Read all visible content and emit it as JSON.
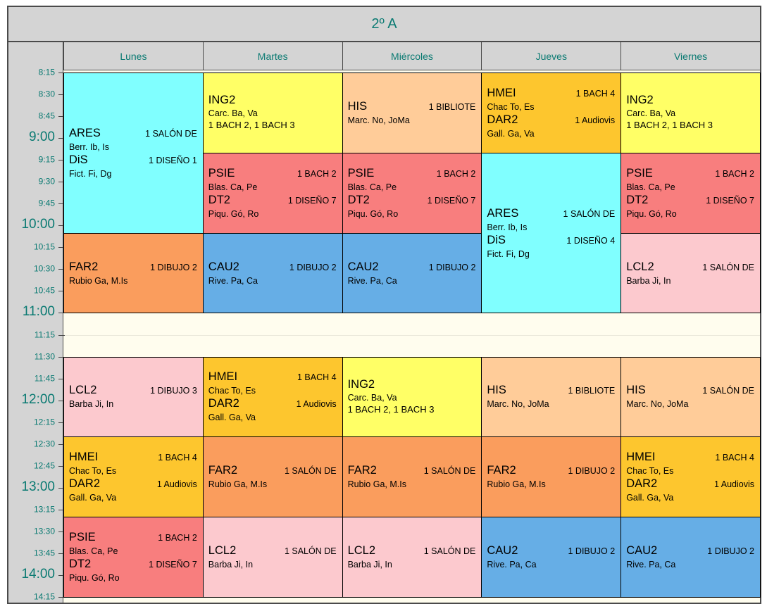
{
  "title": "2º A",
  "days": [
    "Lunes",
    "Martes",
    "Miércoles",
    "Jueves",
    "Viernes"
  ],
  "time_ticks": [
    {
      "label": "8:15",
      "major": false
    },
    {
      "label": "8:30",
      "major": false
    },
    {
      "label": "8:45",
      "major": false
    },
    {
      "label": "9:00",
      "major": true
    },
    {
      "label": "9:15",
      "major": false
    },
    {
      "label": "9:30",
      "major": false
    },
    {
      "label": "9:45",
      "major": false
    },
    {
      "label": "10:00",
      "major": true
    },
    {
      "label": "10:15",
      "major": false
    },
    {
      "label": "10:30",
      "major": false
    },
    {
      "label": "10:45",
      "major": false
    },
    {
      "label": "11:00",
      "major": true
    },
    {
      "label": "11:15",
      "major": false
    },
    {
      "label": "11:30",
      "major": false
    },
    {
      "label": "11:45",
      "major": false
    },
    {
      "label": "12:00",
      "major": true
    },
    {
      "label": "12:15",
      "major": false
    },
    {
      "label": "12:30",
      "major": false
    },
    {
      "label": "12:45",
      "major": false
    },
    {
      "label": "13:00",
      "major": true
    },
    {
      "label": "13:15",
      "major": false
    },
    {
      "label": "13:30",
      "major": false
    },
    {
      "label": "13:45",
      "major": false
    },
    {
      "label": "14:00",
      "major": true
    },
    {
      "label": "14:15",
      "major": false
    }
  ],
  "colors": {
    "cyan": "#80ffff",
    "yellow": "#ffff66",
    "peach": "#ffcc99",
    "gold": "#fdc62e",
    "red": "#f87e7e",
    "orange": "#fa9d5d",
    "blue": "#66aee6",
    "pink": "#fcc9ce",
    "chrome": "#d4d4d4",
    "teal_text": "#0a7a72",
    "grid_bg": "#fffdee"
  },
  "schedule": [
    {
      "day": 0,
      "start": "8:15",
      "end": "10:05",
      "color": "cyan",
      "entries": [
        {
          "code": "ARES",
          "room": "1 SALÓN DE",
          "teachers": "Berr. Ib, Is"
        },
        {
          "code": "DiS",
          "room": "1 DISEÑO 1",
          "teachers": "Fict. Fi, Dg"
        }
      ]
    },
    {
      "day": 0,
      "start": "10:05",
      "end": "11:00",
      "color": "orange",
      "entries": [
        {
          "code": "FAR2",
          "room": "1 DIBUJO 2",
          "teachers": "Rubio Ga, M.Is"
        }
      ]
    },
    {
      "day": 0,
      "start": "11:30",
      "end": "12:25",
      "color": "pink",
      "entries": [
        {
          "code": "LCL2",
          "room": "1 DIBUJO 3",
          "teachers": "Barba Ji, In"
        }
      ]
    },
    {
      "day": 0,
      "start": "12:25",
      "end": "13:20",
      "color": "gold",
      "entries": [
        {
          "code": "HMEI",
          "room": "1 BACH 4",
          "teachers": "Chac To, Es"
        },
        {
          "code": "DAR2",
          "room": "1 Audiovis",
          "teachers": "Gall. Ga, Va"
        }
      ]
    },
    {
      "day": 0,
      "start": "13:20",
      "end": "14:15",
      "color": "red",
      "entries": [
        {
          "code": "PSIE",
          "room": "1 BACH 2",
          "teachers": "Blas. Ca, Pe"
        },
        {
          "code": "DT2",
          "room": "1 DISEÑO 7",
          "teachers": "Piqu. Gó, Ro"
        }
      ]
    },
    {
      "day": 1,
      "start": "8:15",
      "end": "9:10",
      "color": "yellow",
      "entries": [
        {
          "code": "ING2",
          "teachers": "Carc. Ba, Va",
          "groups": "1 BACH 2, 1 BACH 3"
        }
      ]
    },
    {
      "day": 1,
      "start": "9:10",
      "end": "10:05",
      "color": "red",
      "entries": [
        {
          "code": "PSIE",
          "room": "1 BACH 2",
          "teachers": "Blas. Ca, Pe"
        },
        {
          "code": "DT2",
          "room": "1 DISEÑO 7",
          "teachers": "Piqu. Gó, Ro"
        }
      ]
    },
    {
      "day": 1,
      "start": "10:05",
      "end": "11:00",
      "color": "blue",
      "entries": [
        {
          "code": "CAU2",
          "room": "1 DIBUJO 2",
          "teachers": "Rive. Pa, Ca"
        }
      ]
    },
    {
      "day": 1,
      "start": "11:30",
      "end": "12:25",
      "color": "gold",
      "entries": [
        {
          "code": "HMEI",
          "room": "1 BACH 4",
          "teachers": "Chac To, Es"
        },
        {
          "code": "DAR2",
          "room": "1 Audiovis",
          "teachers": "Gall. Ga, Va"
        }
      ]
    },
    {
      "day": 1,
      "start": "12:25",
      "end": "13:20",
      "color": "orange",
      "entries": [
        {
          "code": "FAR2",
          "room": "1 SALÓN DE",
          "teachers": "Rubio Ga, M.Is"
        }
      ]
    },
    {
      "day": 1,
      "start": "13:20",
      "end": "14:15",
      "color": "pink",
      "entries": [
        {
          "code": "LCL2",
          "room": "1 SALÓN DE",
          "teachers": "Barba Ji, In"
        }
      ]
    },
    {
      "day": 2,
      "start": "8:15",
      "end": "9:10",
      "color": "peach",
      "entries": [
        {
          "code": "HIS",
          "room": "1 BIBLIOTE",
          "teachers": "Marc. No, JoMa"
        }
      ]
    },
    {
      "day": 2,
      "start": "9:10",
      "end": "10:05",
      "color": "red",
      "entries": [
        {
          "code": "PSIE",
          "room": "1 BACH 2",
          "teachers": "Blas. Ca, Pe"
        },
        {
          "code": "DT2",
          "room": "1 DISEÑO 7",
          "teachers": "Piqu. Gó, Ro"
        }
      ]
    },
    {
      "day": 2,
      "start": "10:05",
      "end": "11:00",
      "color": "blue",
      "entries": [
        {
          "code": "CAU2",
          "room": "1 DIBUJO 2",
          "teachers": "Rive. Pa, Ca"
        }
      ]
    },
    {
      "day": 2,
      "start": "11:30",
      "end": "12:25",
      "color": "yellow",
      "entries": [
        {
          "code": "ING2",
          "teachers": "Carc. Ba, Va",
          "groups": "1 BACH 2, 1 BACH 3"
        }
      ]
    },
    {
      "day": 2,
      "start": "12:25",
      "end": "13:20",
      "color": "orange",
      "entries": [
        {
          "code": "FAR2",
          "room": "1 SALÓN DE",
          "teachers": "Rubio Ga, M.Is"
        }
      ]
    },
    {
      "day": 2,
      "start": "13:20",
      "end": "14:15",
      "color": "pink",
      "entries": [
        {
          "code": "LCL2",
          "room": "1 SALÓN DE",
          "teachers": "Barba Ji, In"
        }
      ]
    },
    {
      "day": 3,
      "start": "8:15",
      "end": "9:10",
      "color": "gold",
      "entries": [
        {
          "code": "HMEI",
          "room": "1 BACH 4",
          "teachers": "Chac To, Es"
        },
        {
          "code": "DAR2",
          "room": "1 Audiovis",
          "teachers": "Gall. Ga, Va"
        }
      ]
    },
    {
      "day": 3,
      "start": "9:10",
      "end": "11:00",
      "color": "cyan",
      "entries": [
        {
          "code": "ARES",
          "room": "1 SALÓN DE",
          "teachers": "Berr. Ib, Is"
        },
        {
          "code": "DiS",
          "room": "1 DISEÑO 4",
          "teachers": "Fict. Fi, Dg"
        }
      ]
    },
    {
      "day": 3,
      "start": "11:30",
      "end": "12:25",
      "color": "peach",
      "entries": [
        {
          "code": "HIS",
          "room": "1 BIBLIOTE",
          "teachers": "Marc. No, JoMa"
        }
      ]
    },
    {
      "day": 3,
      "start": "12:25",
      "end": "13:20",
      "color": "orange",
      "entries": [
        {
          "code": "FAR2",
          "room": "1 DIBUJO 2",
          "teachers": "Rubio Ga, M.Is"
        }
      ]
    },
    {
      "day": 3,
      "start": "13:20",
      "end": "14:15",
      "color": "blue",
      "entries": [
        {
          "code": "CAU2",
          "room": "1 DIBUJO 2",
          "teachers": "Rive. Pa, Ca"
        }
      ]
    },
    {
      "day": 4,
      "start": "8:15",
      "end": "9:10",
      "color": "yellow",
      "entries": [
        {
          "code": "ING2",
          "teachers": "Carc. Ba, Va",
          "groups": "1 BACH 2, 1 BACH 3"
        }
      ]
    },
    {
      "day": 4,
      "start": "9:10",
      "end": "10:05",
      "color": "red",
      "entries": [
        {
          "code": "PSIE",
          "room": "1 BACH 2",
          "teachers": "Blas. Ca, Pe"
        },
        {
          "code": "DT2",
          "room": "1 DISEÑO 7",
          "teachers": "Piqu. Gó, Ro"
        }
      ]
    },
    {
      "day": 4,
      "start": "10:05",
      "end": "11:00",
      "color": "pink",
      "entries": [
        {
          "code": "LCL2",
          "room": "1 SALÓN DE",
          "teachers": "Barba Ji, In"
        }
      ]
    },
    {
      "day": 4,
      "start": "11:30",
      "end": "12:25",
      "color": "peach",
      "entries": [
        {
          "code": "HIS",
          "room": "1 SALÓN DE",
          "teachers": "Marc. No, JoMa"
        }
      ]
    },
    {
      "day": 4,
      "start": "12:25",
      "end": "13:20",
      "color": "gold",
      "entries": [
        {
          "code": "HMEI",
          "room": "1 BACH 4",
          "teachers": "Chac To, Es"
        },
        {
          "code": "DAR2",
          "room": "1 Audiovis",
          "teachers": "Gall. Ga, Va"
        }
      ]
    },
    {
      "day": 4,
      "start": "13:20",
      "end": "14:15",
      "color": "blue",
      "entries": [
        {
          "code": "CAU2",
          "room": "1 DIBUJO 2",
          "teachers": "Rive. Pa, Ca"
        }
      ]
    }
  ]
}
